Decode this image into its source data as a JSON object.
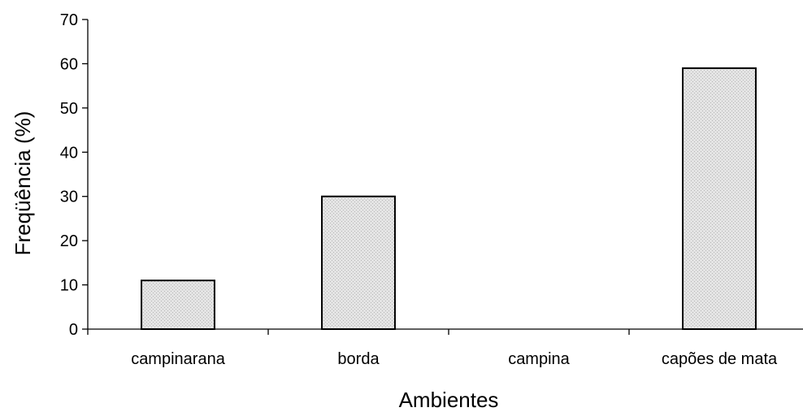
{
  "chart_data": {
    "type": "bar",
    "categories": [
      "campinarana",
      "borda",
      "campina",
      "capões de mata"
    ],
    "values": [
      11,
      30,
      0,
      59
    ],
    "title": "",
    "xlabel": "Ambientes",
    "ylabel": "Freqüência (%)",
    "ylim": [
      0,
      70
    ],
    "yticks": [
      0,
      10,
      20,
      30,
      40,
      50,
      60,
      70
    ],
    "grid": false,
    "legend": "none",
    "bar_fill": "#d9d9d9",
    "bar_stroke": "#000000"
  }
}
